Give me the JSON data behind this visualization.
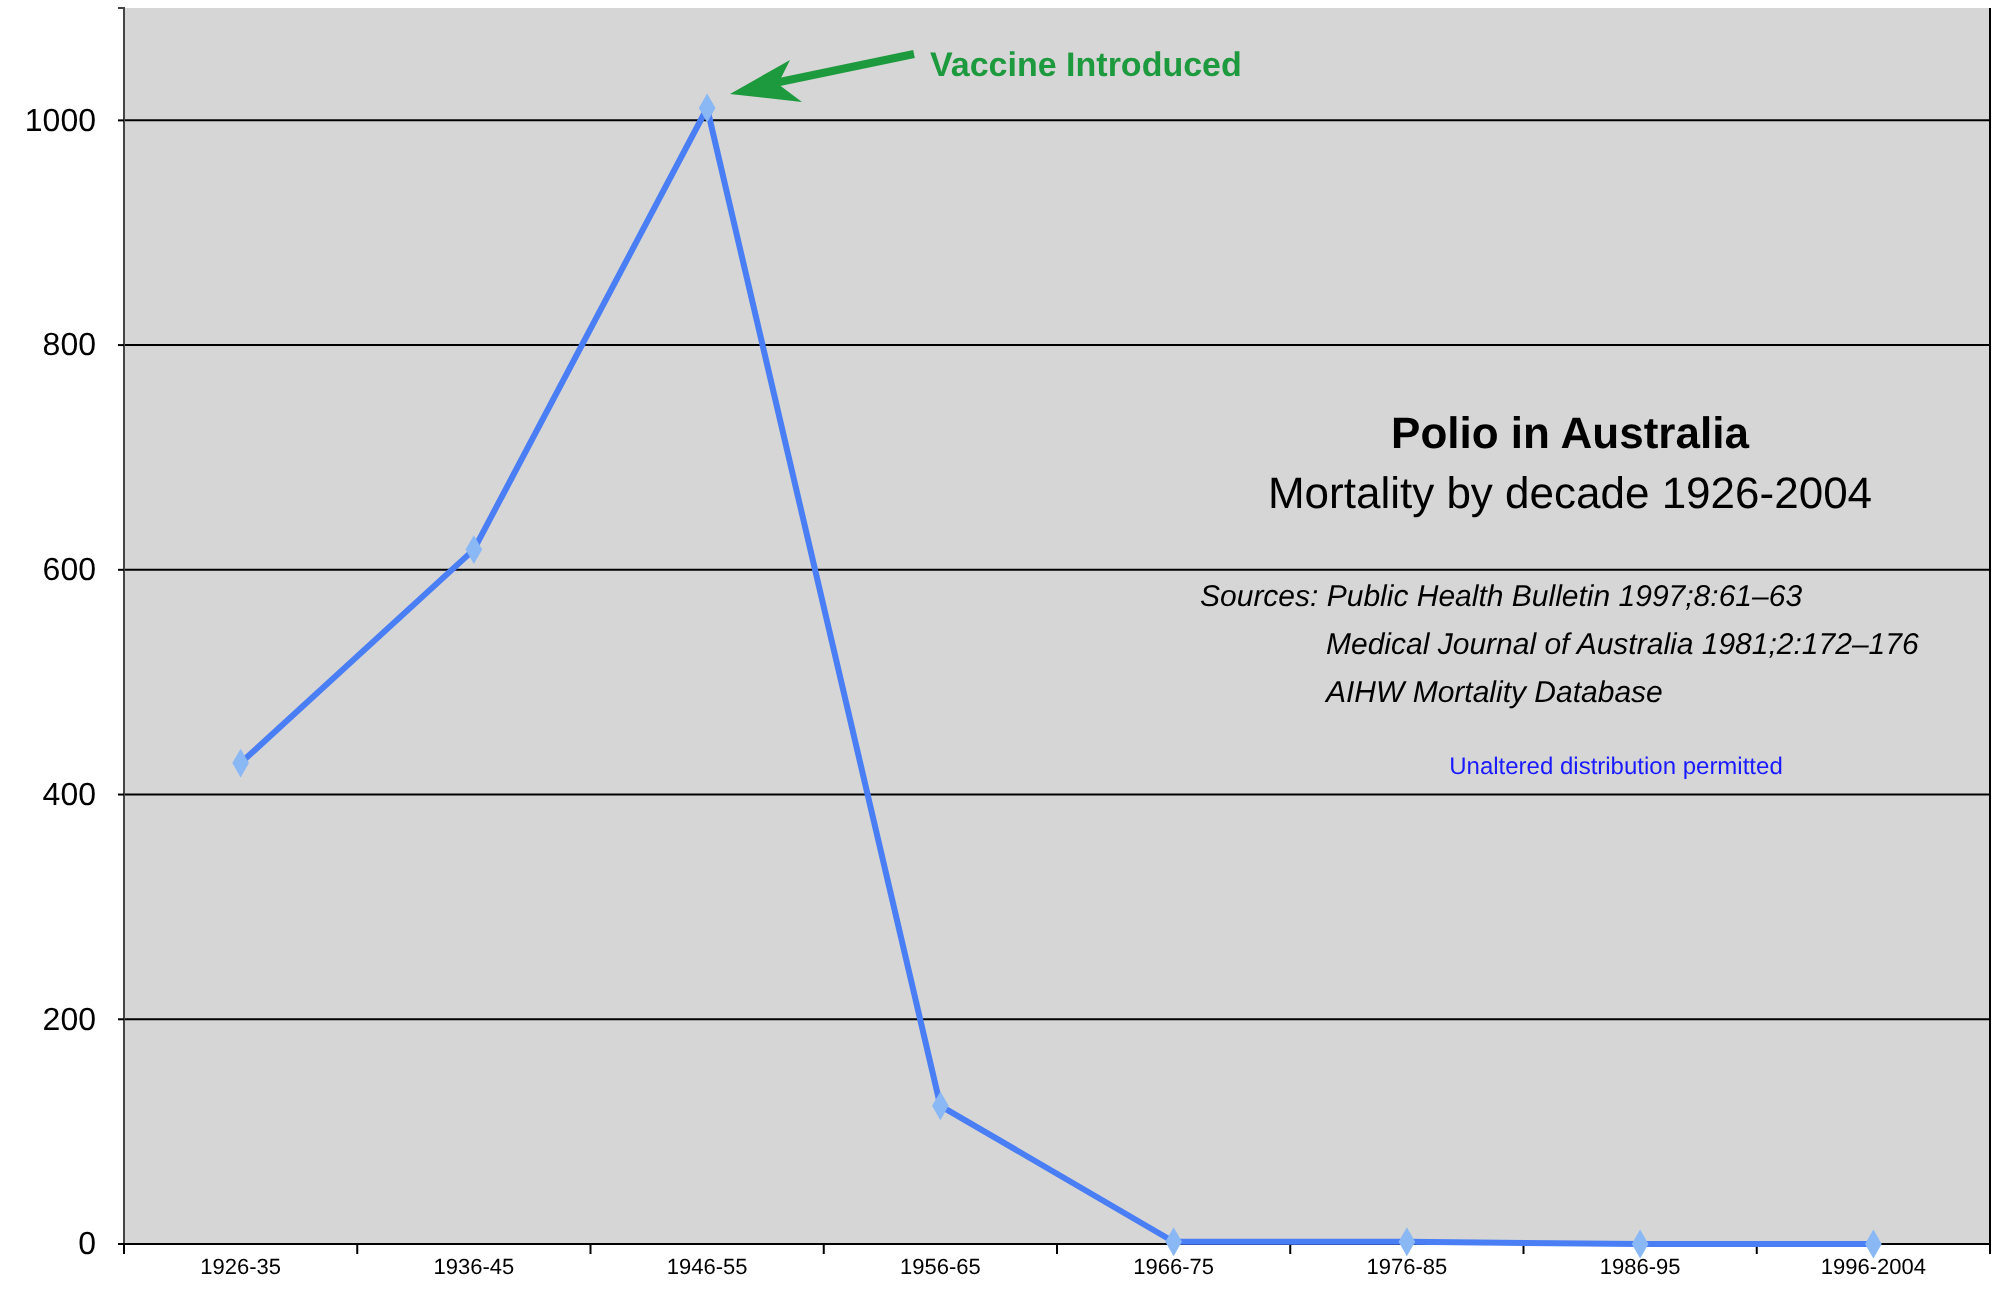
{
  "chart_data": {
    "type": "line",
    "title": "Polio in Australia",
    "subtitle": "Mortality by decade  1926-2004",
    "categories": [
      "1926-35",
      "1936-45",
      "1946-55",
      "1956-65",
      "1966-75",
      "1976-85",
      "1986-95",
      "1996-2004"
    ],
    "series": [
      {
        "color": "#4a7ef5",
        "values": [
          428,
          618,
          1011,
          123,
          2,
          2,
          0,
          0
        ]
      }
    ],
    "ylim": [
      0,
      1100
    ],
    "yticks": [
      0,
      200,
      400,
      600,
      800,
      1000
    ],
    "grid": "y",
    "marker": "diamond",
    "line_style": "solid",
    "legend": false,
    "annotations": [
      "Vaccine Introduced",
      "Sources:  Public Health Bulletin 1997;8:61–63",
      "Medical Journal of Australia 1981;2:172–176",
      "AIHW Mortality Database",
      "Unaltered distribution permitted"
    ]
  }
}
